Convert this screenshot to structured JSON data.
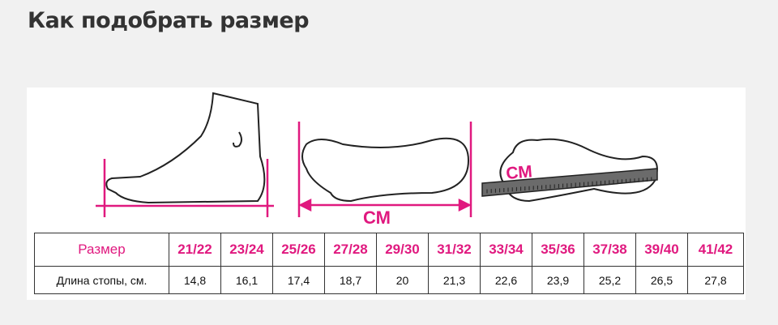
{
  "title": "Как подобрать размер",
  "illustration": {
    "unit_label_1": "СМ",
    "unit_label_2": "СМ",
    "accent": "#e0197f"
  },
  "table": {
    "header_label": "Размер",
    "row_label": "Длина стопы, см.",
    "sizes": [
      "21/22",
      "23/24",
      "25/26",
      "27/28",
      "29/30",
      "31/32",
      "33/34",
      "35/36",
      "37/38",
      "39/40",
      "41/42"
    ],
    "lengths": [
      "14,8",
      "16,1",
      "17,4",
      "18,7",
      "20",
      "21,3",
      "22,6",
      "23,9",
      "25,2",
      "26,5",
      "27,8"
    ]
  }
}
